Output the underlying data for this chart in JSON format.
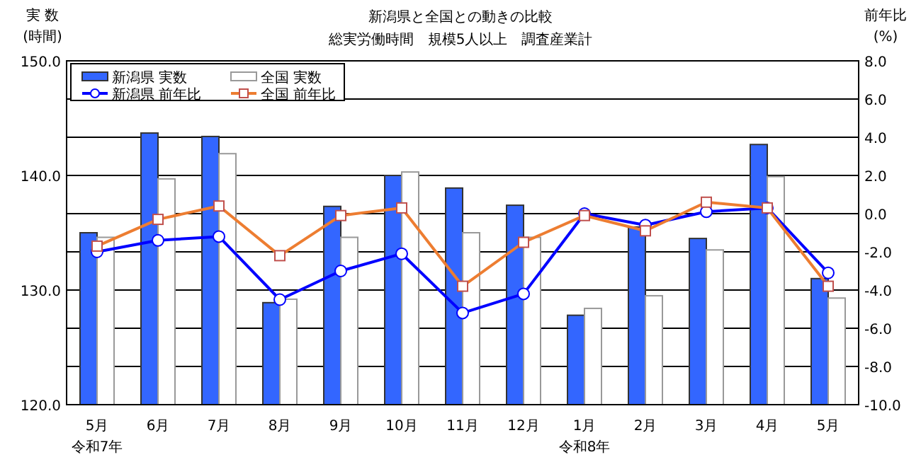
{
  "chart_data": {
    "type": "bar",
    "title": "新潟県と全国との動きの比較",
    "subtitle": "総実労働時間　規模5人以上　調査産業計",
    "ylabel": "実 数\n(時間)",
    "y2label": "前年比\n(%)",
    "categories": [
      "5月",
      "6月",
      "7月",
      "8月",
      "9月",
      "10月",
      "11月",
      "12月",
      "1月",
      "2月",
      "3月",
      "4月",
      "5月"
    ],
    "series": [
      {
        "name": "新潟県  実数",
        "color": "#3366ff",
        "values": [
          135.0,
          143.7,
          143.4,
          128.9,
          137.3,
          140.0,
          138.9,
          137.4,
          127.8,
          135.5,
          134.5,
          142.7,
          131.0
        ]
      },
      {
        "name": "全国  実数",
        "color": "#ffffff",
        "values": [
          134.6,
          139.7,
          141.9,
          129.2,
          134.6,
          140.3,
          135.0,
          134.6,
          128.4,
          129.5,
          133.5,
          139.9,
          129.3
        ]
      },
      {
        "name": "新潟県  前年比",
        "type": "line",
        "axis": "y2",
        "marker": "circle",
        "color": "#0000ff",
        "values": [
          -2.0,
          -1.4,
          -1.2,
          -4.5,
          -3.0,
          -2.1,
          -5.2,
          -4.2,
          0.0,
          -0.6,
          0.1,
          0.3,
          -3.1
        ]
      },
      {
        "name": "全国  前年比",
        "type": "line",
        "axis": "y2",
        "marker": "square",
        "color": "#ed7d31",
        "values": [
          -1.7,
          -0.3,
          0.4,
          -2.2,
          -0.1,
          0.3,
          -3.8,
          -1.5,
          -0.1,
          -0.9,
          0.6,
          0.3,
          -3.8
        ]
      }
    ],
    "ylim": [
      120,
      150
    ],
    "yticks": [
      {
        "value": 120,
        "label": "120.0"
      },
      {
        "value": 130,
        "label": "130.0"
      },
      {
        "value": 140,
        "label": "140.0"
      },
      {
        "value": 150,
        "label": "150.0"
      }
    ],
    "y2lim": [
      -10,
      8
    ],
    "y2ticks": [
      {
        "value": -10,
        "label": "-10.0"
      },
      {
        "value": -8,
        "label": "-8.0"
      },
      {
        "value": -6,
        "label": "-6.0"
      },
      {
        "value": -4,
        "label": "-4.0"
      },
      {
        "value": -2,
        "label": "-2.0"
      },
      {
        "value": 0,
        "label": "0.0"
      },
      {
        "value": 2,
        "label": "2.0"
      },
      {
        "value": 4,
        "label": "4.0"
      },
      {
        "value": 6,
        "label": "6.0"
      },
      {
        "value": 8,
        "label": "8.0"
      }
    ],
    "grid": true,
    "legend": "top left",
    "annotations": [
      "令和7年",
      "令和8年"
    ]
  }
}
